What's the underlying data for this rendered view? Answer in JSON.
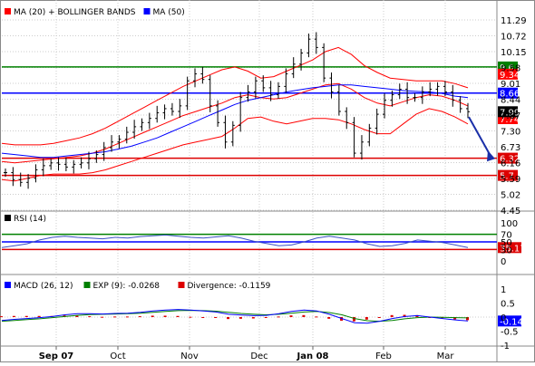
{
  "colors": {
    "price": "#000000",
    "ma20": "#ff0000",
    "ma50": "#0000ff",
    "green_line": "#008000",
    "blue_line": "#0000ff",
    "red_line": "#dd0000",
    "rsi_line": "#3a4fc4",
    "macd_line": "#0000ff",
    "exp_line": "#008000",
    "divergence": "#dd0000",
    "grid": "#cccccc"
  },
  "price_panel": {
    "legend": [
      {
        "label": "MA (20) + BOLLINGER BANDS",
        "color": "#ff0000"
      },
      {
        "label": "MA (50)",
        "color": "#0000ff"
      }
    ],
    "y_ticks": [
      "11.29",
      "10.72",
      "10.15",
      "9.58",
      "9.01",
      "8.44",
      "7.87",
      "7.30",
      "6.73",
      "6.16",
      "5.59",
      "5.02",
      "4.45"
    ],
    "levels": [
      {
        "label": "9.6",
        "value": 9.6,
        "color": "#008000"
      },
      {
        "label": "8.66",
        "value": 8.66,
        "color": "#0000ff"
      },
      {
        "label": "6.32",
        "value": 6.32,
        "color": "#dd0000"
      },
      {
        "label": "5.7",
        "value": 5.7,
        "color": "#dd0000"
      }
    ],
    "price_tags": [
      {
        "label": "9.34",
        "value": 9.34,
        "color": "#ff0000"
      },
      {
        "label": "7.74",
        "value": 7.74,
        "color": "#ff0000"
      },
      {
        "label": "7.99",
        "value": 7.99,
        "color": "#000000"
      }
    ]
  },
  "rsi_panel": {
    "legend": [
      {
        "label": "RSI (14)",
        "color": "#000000"
      }
    ],
    "y_ticks": [
      "100",
      "70",
      "50",
      "30",
      "0"
    ],
    "levels": [
      {
        "label": "70",
        "value": 70,
        "color": "#008000"
      },
      {
        "label": "50",
        "value": 50,
        "color": "#0000ff"
      },
      {
        "label": "30",
        "value": 30,
        "color": "#dd0000"
      }
    ],
    "current_label": "35.17"
  },
  "macd_panel": {
    "legend": [
      {
        "label": "MACD (26, 12)",
        "color": "#0000ff"
      },
      {
        "label": "EXP (9): -0.0268",
        "color": "#008000"
      },
      {
        "label": "Divergence: -0.1159",
        "color": "#dd0000"
      }
    ],
    "y_ticks": [
      "1",
      "0.5",
      "0",
      "-0.5",
      "-1"
    ],
    "current_label": "-0.14"
  },
  "x_axis": {
    "labels": [
      {
        "label": "Sep 07",
        "bold": true
      },
      {
        "label": "Oct",
        "bold": false
      },
      {
        "label": "Nov",
        "bold": false
      },
      {
        "label": "Dec",
        "bold": false
      },
      {
        "label": "Jan 08",
        "bold": true
      },
      {
        "label": "Feb",
        "bold": false
      },
      {
        "label": "Mar",
        "bold": false
      }
    ]
  },
  "chart_data": {
    "type": "line",
    "series": [
      {
        "name": "MA (20) + BOLLINGER BANDS",
        "values": [
          6.2,
          6.15,
          6.2,
          6.25,
          6.3,
          6.35,
          6.4,
          6.5,
          6.65,
          6.85,
          7.05,
          7.25,
          7.45,
          7.65,
          7.85,
          8.0,
          8.15,
          8.3,
          8.5,
          8.6,
          8.5,
          8.45,
          8.5,
          8.65,
          8.8,
          8.95,
          9.0,
          8.8,
          8.5,
          8.3,
          8.2,
          8.35,
          8.5,
          8.6,
          8.55,
          8.4,
          8.2
        ]
      },
      {
        "name": "MA (50)",
        "values": [
          6.5,
          6.45,
          6.4,
          6.35,
          6.35,
          6.4,
          6.45,
          6.5,
          6.55,
          6.65,
          6.75,
          6.9,
          7.05,
          7.25,
          7.45,
          7.65,
          7.85,
          8.05,
          8.25,
          8.4,
          8.5,
          8.6,
          8.7,
          8.78,
          8.85,
          8.9,
          8.95,
          8.95,
          8.9,
          8.85,
          8.8,
          8.75,
          8.72,
          8.7,
          8.65,
          8.55,
          8.5
        ]
      },
      {
        "name": "RSI (14)",
        "values": [
          35,
          40,
          45,
          55,
          62,
          65,
          62,
          60,
          58,
          62,
          60,
          64,
          66,
          68,
          65,
          62,
          60,
          63,
          66,
          60,
          52,
          46,
          40,
          42,
          50,
          60,
          65,
          60,
          55,
          45,
          38,
          40,
          46,
          55,
          52,
          48,
          42,
          35
        ]
      },
      {
        "name": "MACD (26, 12)",
        "values": [
          -0.12,
          -0.08,
          -0.05,
          -0.02,
          0.02,
          0.08,
          0.12,
          0.12,
          0.11,
          0.13,
          0.14,
          0.17,
          0.22,
          0.25,
          0.27,
          0.25,
          0.22,
          0.18,
          0.1,
          0.07,
          0.05,
          0.06,
          0.12,
          0.2,
          0.25,
          0.22,
          0.1,
          -0.05,
          -0.2,
          -0.22,
          -0.15,
          -0.05,
          0.02,
          0.05,
          0.0,
          -0.05,
          -0.1,
          -0.14
        ]
      },
      {
        "name": "EXP (9)",
        "values": [
          -0.15,
          -0.12,
          -0.09,
          -0.06,
          -0.02,
          0.02,
          0.06,
          0.09,
          0.1,
          0.11,
          0.12,
          0.14,
          0.17,
          0.2,
          0.23,
          0.24,
          0.23,
          0.21,
          0.17,
          0.13,
          0.1,
          0.08,
          0.1,
          0.14,
          0.18,
          0.2,
          0.16,
          0.08,
          -0.05,
          -0.13,
          -0.15,
          -0.12,
          -0.06,
          -0.02,
          0.0,
          -0.01,
          -0.02,
          -0.03
        ]
      }
    ],
    "price_bars": [
      5.8,
      5.55,
      5.45,
      5.6,
      5.9,
      6.05,
      6.15,
      6.1,
      6.0,
      6.1,
      6.15,
      6.3,
      6.45,
      6.7,
      6.9,
      7.0,
      7.25,
      7.45,
      7.6,
      7.75,
      7.95,
      8.1,
      8.0,
      8.2,
      9.1,
      9.35,
      9.15,
      8.2,
      7.6,
      6.9,
      7.5,
      8.5,
      8.7,
      9.1,
      8.85,
      8.6,
      8.9,
      9.35,
      9.7,
      10.1,
      10.6,
      10.3,
      9.2,
      8.7,
      8.0,
      7.6,
      6.5,
      6.9,
      7.4,
      7.9,
      8.4,
      8.6,
      8.8,
      8.5,
      8.5,
      8.7,
      8.8,
      8.9,
      8.7,
      8.4,
      8.1,
      7.99
    ],
    "xlabel": "",
    "ylabel": "",
    "ylim": [
      4.45,
      11.29
    ]
  }
}
